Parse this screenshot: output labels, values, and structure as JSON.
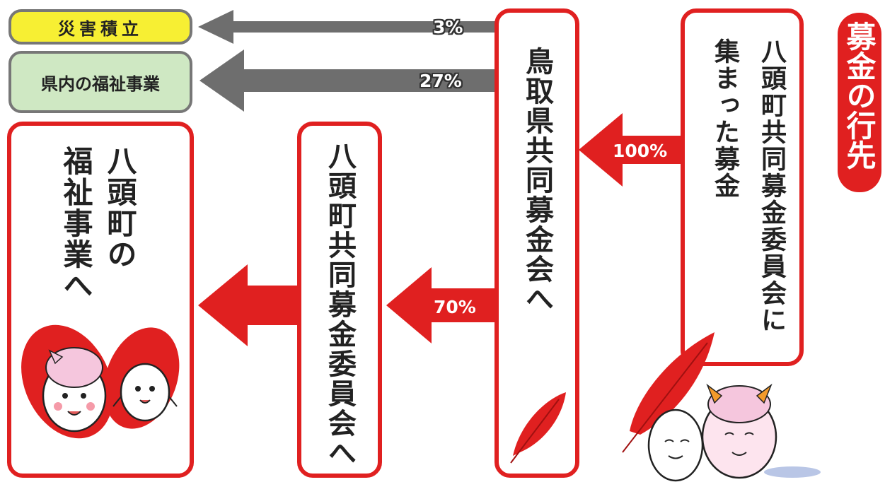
{
  "title": "募金の行先",
  "nodes": {
    "collected": "八頭町共同募金委員会に集まった募金",
    "collected_line1": "八頭町共同募金委員会に",
    "collected_line2": "集まった募金",
    "prefecture": "鳥取県共同募金会へ",
    "town_committee": "八頭町共同募金委員会へ",
    "town_welfare": "八頭町の福祉事業へ",
    "town_welfare_line1": "八頭町の",
    "town_welfare_line2": "福祉事業へ",
    "disaster_fund": "災害積立",
    "prefecture_welfare": "県内の福祉事業"
  },
  "flows": {
    "to_prefecture": "100%",
    "to_town": "70%",
    "to_prefecture_welfare": "27%",
    "to_disaster": "3%"
  },
  "colors": {
    "red": "#e02020",
    "grey": "#777777",
    "disaster_fill": "#f7ef33",
    "welfare_fill": "#cfe8c3"
  },
  "icons": [
    "red-feather-icon",
    "mascot-icon"
  ]
}
